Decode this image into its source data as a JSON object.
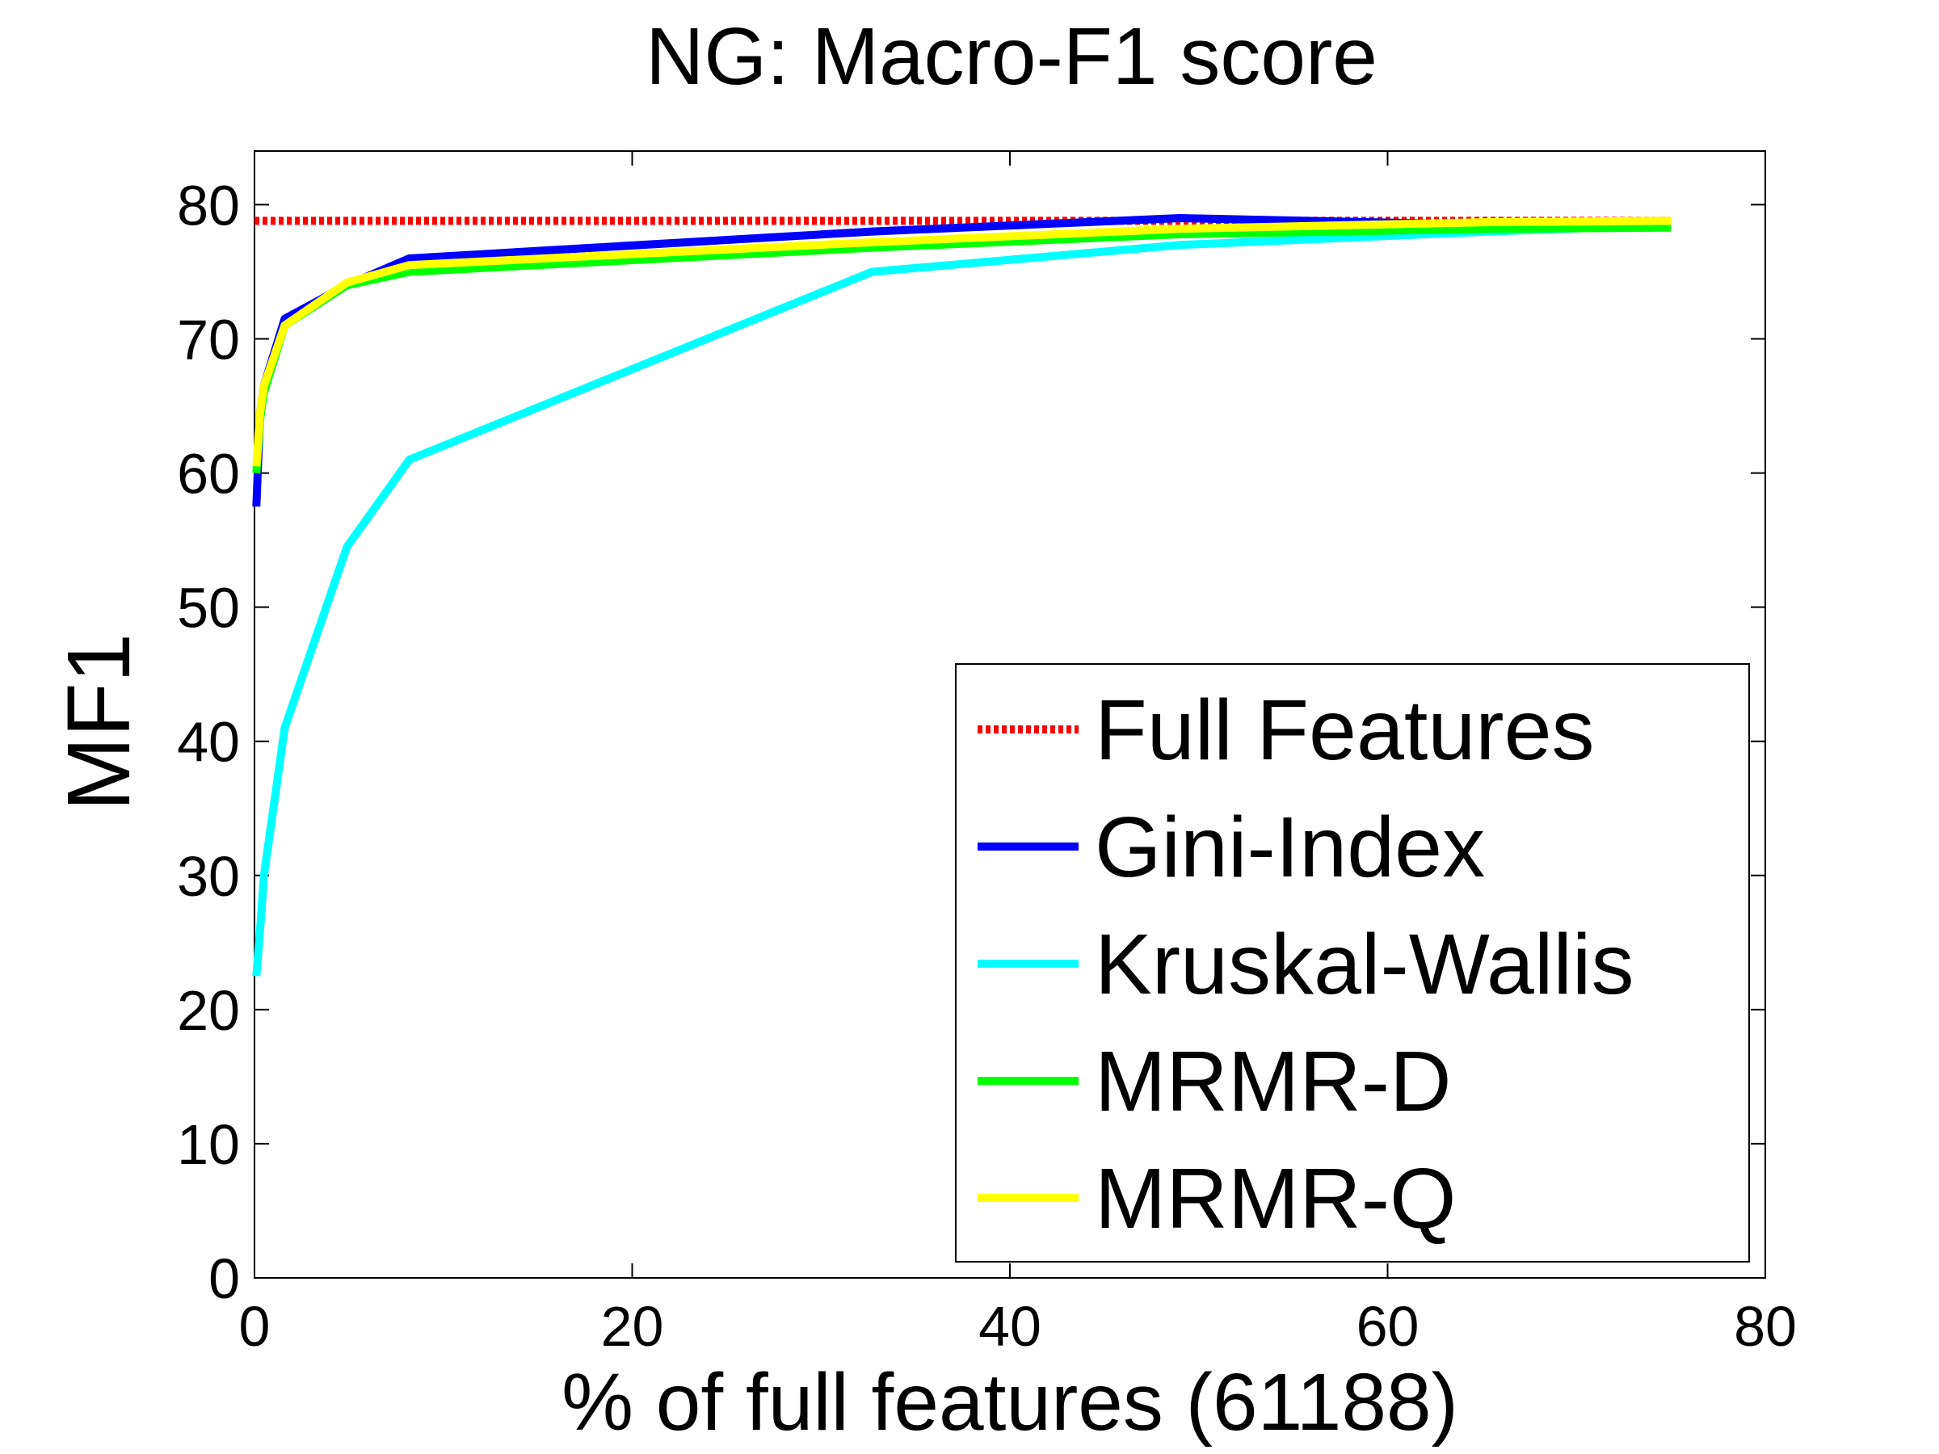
{
  "chart_data": {
    "type": "line",
    "title": "NG: Macro-F1 score",
    "xlabel": "% of full features (61188)",
    "ylabel": "MF1",
    "xlim": [
      0,
      80
    ],
    "ylim": [
      0,
      84
    ],
    "xticks": [
      0,
      20,
      40,
      60,
      80
    ],
    "yticks": [
      0,
      10,
      20,
      30,
      40,
      50,
      60,
      70,
      80
    ],
    "grid": false,
    "legend_position": "bottom-right",
    "series": [
      {
        "name": "Full Features",
        "color": "#ff0000",
        "style": "dotted",
        "x": [
          0,
          75
        ],
        "y": [
          78.8,
          78.8
        ]
      },
      {
        "name": "Gini-Index",
        "color": "#0000ff",
        "style": "solid",
        "x": [
          0.1,
          0.3,
          0.5,
          1.6,
          4.9,
          8.2,
          32.7,
          49.0,
          65.4,
          75.0
        ],
        "y": [
          57.5,
          64.5,
          66.5,
          71.5,
          74.0,
          76.0,
          78.0,
          79.0,
          78.5,
          78.5
        ]
      },
      {
        "name": "Kruskal-Wallis",
        "color": "#00ffff",
        "style": "solid",
        "x": [
          0.1,
          0.3,
          0.5,
          1.6,
          4.9,
          8.2,
          32.7,
          49.0,
          65.4,
          75.0
        ],
        "y": [
          22.5,
          26.0,
          30.0,
          41.0,
          54.5,
          61.0,
          75.0,
          77.0,
          78.0,
          78.5
        ]
      },
      {
        "name": "MRMR-D",
        "color": "#00ff00",
        "style": "solid",
        "x": [
          0.1,
          0.3,
          0.5,
          1.6,
          4.9,
          8.2,
          32.7,
          49.0,
          65.4,
          75.0
        ],
        "y": [
          60.0,
          64.0,
          66.0,
          71.0,
          74.0,
          75.0,
          76.8,
          77.8,
          78.2,
          78.3
        ]
      },
      {
        "name": "MRMR-Q",
        "color": "#ffff00",
        "style": "solid",
        "x": [
          0.1,
          0.3,
          0.5,
          1.6,
          4.9,
          8.2,
          32.7,
          49.0,
          65.4,
          75.0
        ],
        "y": [
          60.5,
          64.5,
          66.5,
          71.0,
          74.2,
          75.5,
          77.2,
          78.2,
          78.7,
          78.8
        ]
      }
    ]
  }
}
